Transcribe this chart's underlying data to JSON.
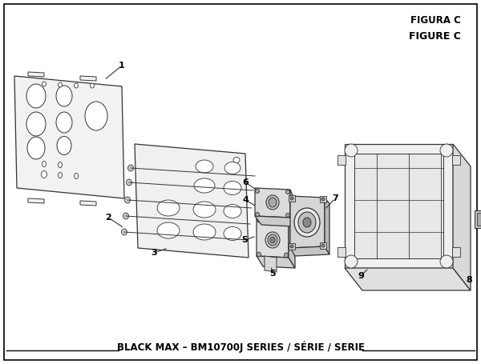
{
  "title": "BLACK MAX – BM10700J SERIES / SÉRIE / SERIE",
  "figure_label": "FIGURE C",
  "figura_label": "FIGURA C",
  "bg_color": "#ffffff",
  "border_color": "#000000",
  "title_fontsize": 8.5,
  "lc": "#333333",
  "lc2": "#555555"
}
